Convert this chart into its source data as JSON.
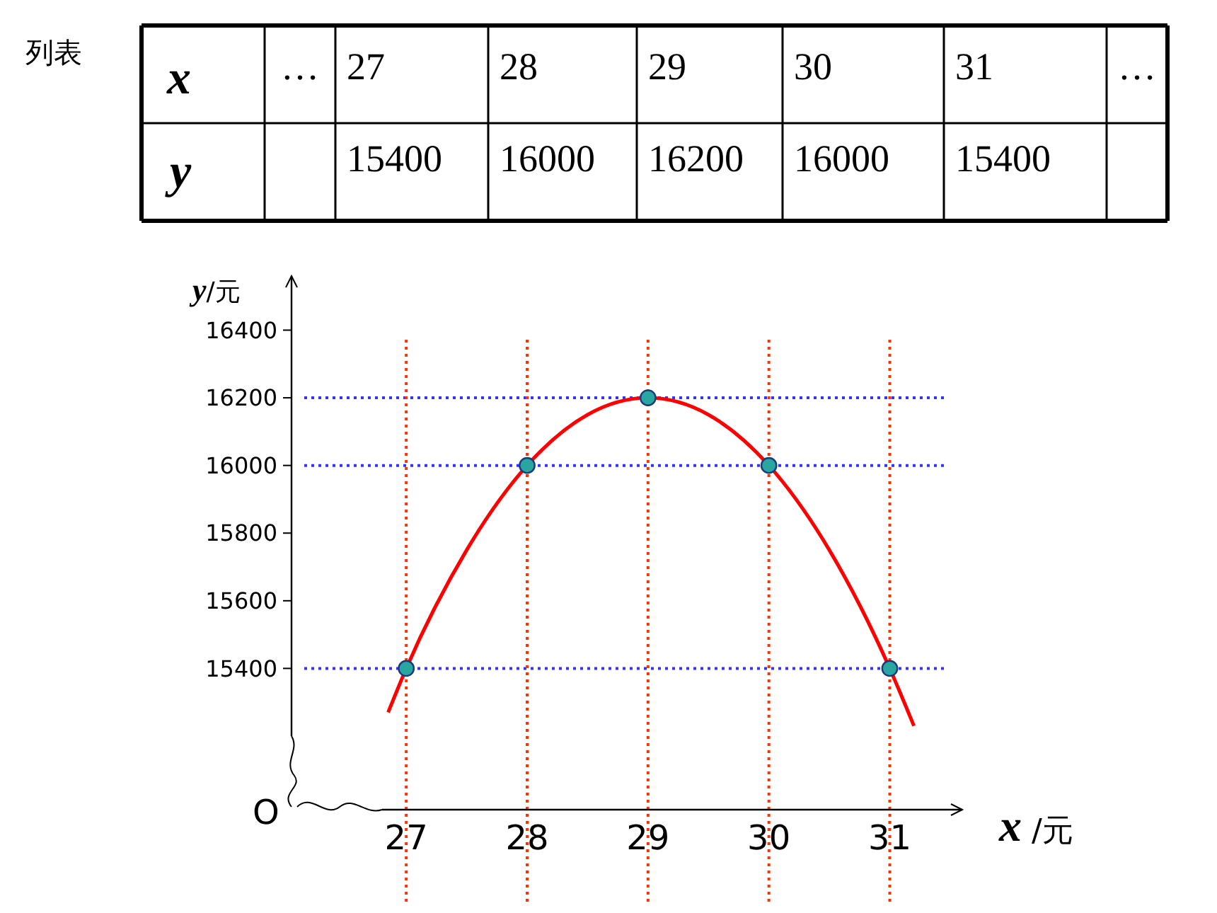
{
  "chart_data": [
    {
      "type": "heatmap",
      "title": "列表",
      "xlabel": "x",
      "categories": [
        "…",
        "27",
        "28",
        "29",
        "30",
        "31",
        "…"
      ],
      "y_categories": [
        "y"
      ],
      "cells": [
        [
          null,
          15400,
          16000,
          16200,
          16000,
          15400,
          null
        ]
      ],
      "data_labels": true
    },
    {
      "type": "scatter",
      "xlabel": "x /元",
      "ylabel": "y/元",
      "x": [
        27,
        28,
        29,
        30,
        31
      ],
      "series": [
        {
          "type": "scatter",
          "color": "#2aa6a0",
          "values": [
            15400,
            16000,
            16200,
            16000,
            15400
          ]
        },
        {
          "type": "line",
          "color": "#ff0000",
          "marker": "none",
          "x": [
            26.85,
            27,
            27.5,
            28,
            28.5,
            29,
            29.5,
            30,
            30.5,
            31,
            31.2
          ],
          "values": [
            15270,
            15400,
            15750,
            16000,
            16150,
            16200,
            16150,
            16000,
            15750,
            15400,
            15230
          ]
        }
      ],
      "xlim": [
        26.8,
        31.6
      ],
      "ylim": [
        15200,
        16560
      ],
      "xticks": [
        27,
        28,
        29,
        30,
        31
      ],
      "yticks": [
        15400,
        15600,
        15800,
        16000,
        16200,
        16400
      ],
      "grid": false,
      "marker": "circle",
      "ref_lines": [
        {
          "axis": "y",
          "value": 15400,
          "color": "#3333ff",
          "line_style": "dotted"
        },
        {
          "axis": "y",
          "value": 16000,
          "color": "#3333ff",
          "line_style": "dotted"
        },
        {
          "axis": "y",
          "value": 16200,
          "color": "#3333ff",
          "line_style": "dotted"
        },
        {
          "axis": "x",
          "value": 27,
          "color": "#ff3300",
          "line_style": "dotted"
        },
        {
          "axis": "x",
          "value": 28,
          "color": "#ff3300",
          "line_style": "dotted"
        },
        {
          "axis": "x",
          "value": 29,
          "color": "#ff3300",
          "line_style": "dotted"
        },
        {
          "axis": "x",
          "value": 30,
          "color": "#ff3300",
          "line_style": "dotted"
        },
        {
          "axis": "x",
          "value": 31,
          "color": "#ff3300",
          "line_style": "dotted"
        }
      ],
      "annotations": [
        "O"
      ]
    }
  ]
}
